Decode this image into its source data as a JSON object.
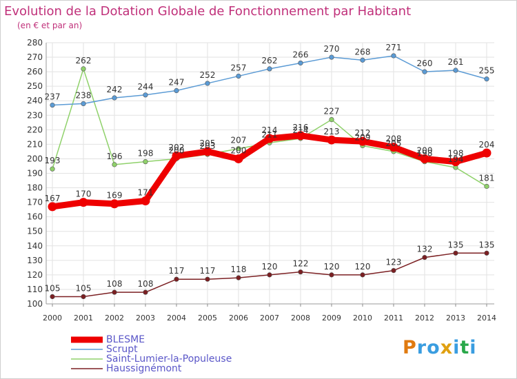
{
  "chart_data": {
    "type": "line",
    "title": "Evolution de la Dotation Globale de Fonctionnement par Habitant",
    "subtitle": "(en € et par an)",
    "categories": [
      "2000",
      "2001",
      "2002",
      "2003",
      "2004",
      "2005",
      "2006",
      "2007",
      "2008",
      "2009",
      "2010",
      "2011",
      "2012",
      "2013",
      "2014"
    ],
    "ylim": [
      100,
      280
    ],
    "yticks": [
      100,
      110,
      120,
      130,
      140,
      150,
      160,
      170,
      180,
      190,
      200,
      210,
      220,
      230,
      240,
      250,
      260,
      270,
      280
    ],
    "grid": true,
    "legend_position": "bottom-left",
    "series": [
      {
        "name": "BLESME",
        "color": "#ee0000",
        "values": [
          167,
          170,
          169,
          171,
          202,
          205,
          200,
          214,
          216,
          213,
          212,
          208,
          200,
          198,
          204
        ]
      },
      {
        "name": "Scrupt",
        "color": "#5b9bd5",
        "values": [
          237,
          238,
          242,
          244,
          247,
          252,
          257,
          262,
          266,
          270,
          268,
          271,
          260,
          261,
          255
        ]
      },
      {
        "name": "Saint-Lumier-la-Populeuse",
        "color": "#8fd16a",
        "values": [
          193,
          262,
          196,
          198,
          200,
          203,
          207,
          211,
          214,
          227,
          209,
          205,
          198,
          194,
          181
        ]
      },
      {
        "name": "Haussignémont",
        "color": "#7b1f22",
        "values": [
          105,
          105,
          108,
          108,
          117,
          117,
          118,
          120,
          122,
          120,
          120,
          123,
          132,
          135,
          135
        ]
      }
    ]
  },
  "logo": {
    "text": "Proxiti"
  }
}
